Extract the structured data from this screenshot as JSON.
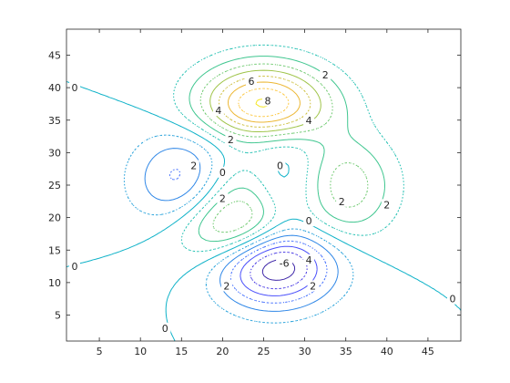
{
  "chart_data": {
    "type": "contour",
    "title": "",
    "xlabel": "",
    "ylabel": "",
    "xlim": [
      1,
      49
    ],
    "ylim": [
      1,
      49
    ],
    "xticks": [
      5,
      10,
      15,
      20,
      25,
      30,
      35,
      40,
      45
    ],
    "yticks": [
      5,
      10,
      15,
      20,
      25,
      30,
      35,
      40,
      45
    ],
    "grid": false,
    "colormap": "parula",
    "levels": [
      -6,
      -5,
      -4,
      -3,
      -2,
      -1,
      0,
      1,
      2,
      3,
      4,
      5,
      6,
      7,
      8
    ],
    "negative_levels_dotted": false,
    "line_styles": {
      "solid": "even levels",
      "dotted": "odd levels"
    },
    "level_colors": {
      "-6": "#3e26a8",
      "-5": "#4536e3",
      "-4": "#4a4ffb",
      "-3": "#3e6bfd",
      "-2": "#2f87e7",
      "-1": "#1f9ed9",
      "0": "#0fb2c8",
      "1": "#1fbfb1",
      "2": "#3fc68f",
      "3": "#6bc86c",
      "4": "#9fc449",
      "5": "#cbbc35",
      "6": "#ecb734",
      "7": "#fdc63a",
      "8": "#f5e626"
    },
    "contour_labels": [
      {
        "text": "0",
        "x": 2,
        "y": 40
      },
      {
        "text": "0",
        "x": 2,
        "y": 12.5
      },
      {
        "text": "0",
        "x": 13,
        "y": 3
      },
      {
        "text": "0",
        "x": 20,
        "y": 27
      },
      {
        "text": "0",
        "x": 27,
        "y": 28
      },
      {
        "text": "0",
        "x": 30.5,
        "y": 19.5
      },
      {
        "text": "0",
        "x": 48,
        "y": 7.5
      },
      {
        "text": "2",
        "x": 16.5,
        "y": 28
      },
      {
        "text": "2",
        "x": 20,
        "y": 23
      },
      {
        "text": "2",
        "x": 20.5,
        "y": 9.5
      },
      {
        "text": "2",
        "x": 31,
        "y": 9.5
      },
      {
        "text": "2",
        "x": 34.5,
        "y": 22.5
      },
      {
        "text": "2",
        "x": 40,
        "y": 22
      },
      {
        "text": "2",
        "x": 21,
        "y": 32
      },
      {
        "text": "2",
        "x": 32.5,
        "y": 42
      },
      {
        "text": "4",
        "x": 19.5,
        "y": 36.5
      },
      {
        "text": "4",
        "x": 30.5,
        "y": 35
      },
      {
        "text": "4",
        "x": 30.5,
        "y": 13.5
      },
      {
        "text": "6",
        "x": 23.5,
        "y": 41
      },
      {
        "text": "8",
        "x": 25.5,
        "y": 38
      },
      {
        "text": "-6",
        "x": 27.5,
        "y": 13
      }
    ]
  }
}
